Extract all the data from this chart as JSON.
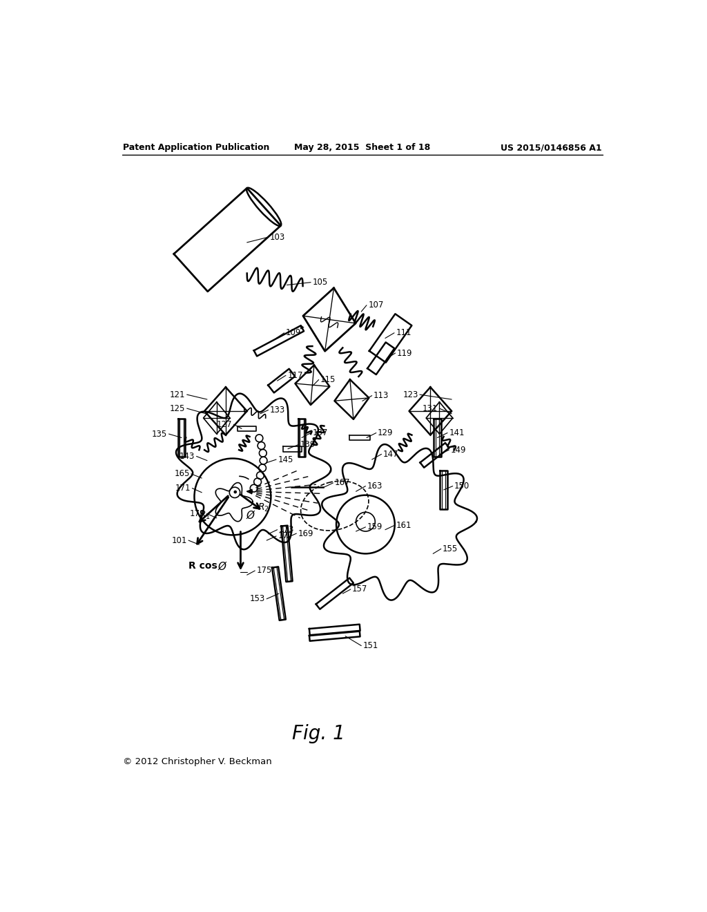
{
  "background_color": "#ffffff",
  "header_left": "Patent Application Publication",
  "header_center": "May 28, 2015  Sheet 1 of 18",
  "header_right": "US 2015/0146856 A1",
  "fig_label": "Fig. 1",
  "copyright": "© 2012 Christopher V. Beckman"
}
